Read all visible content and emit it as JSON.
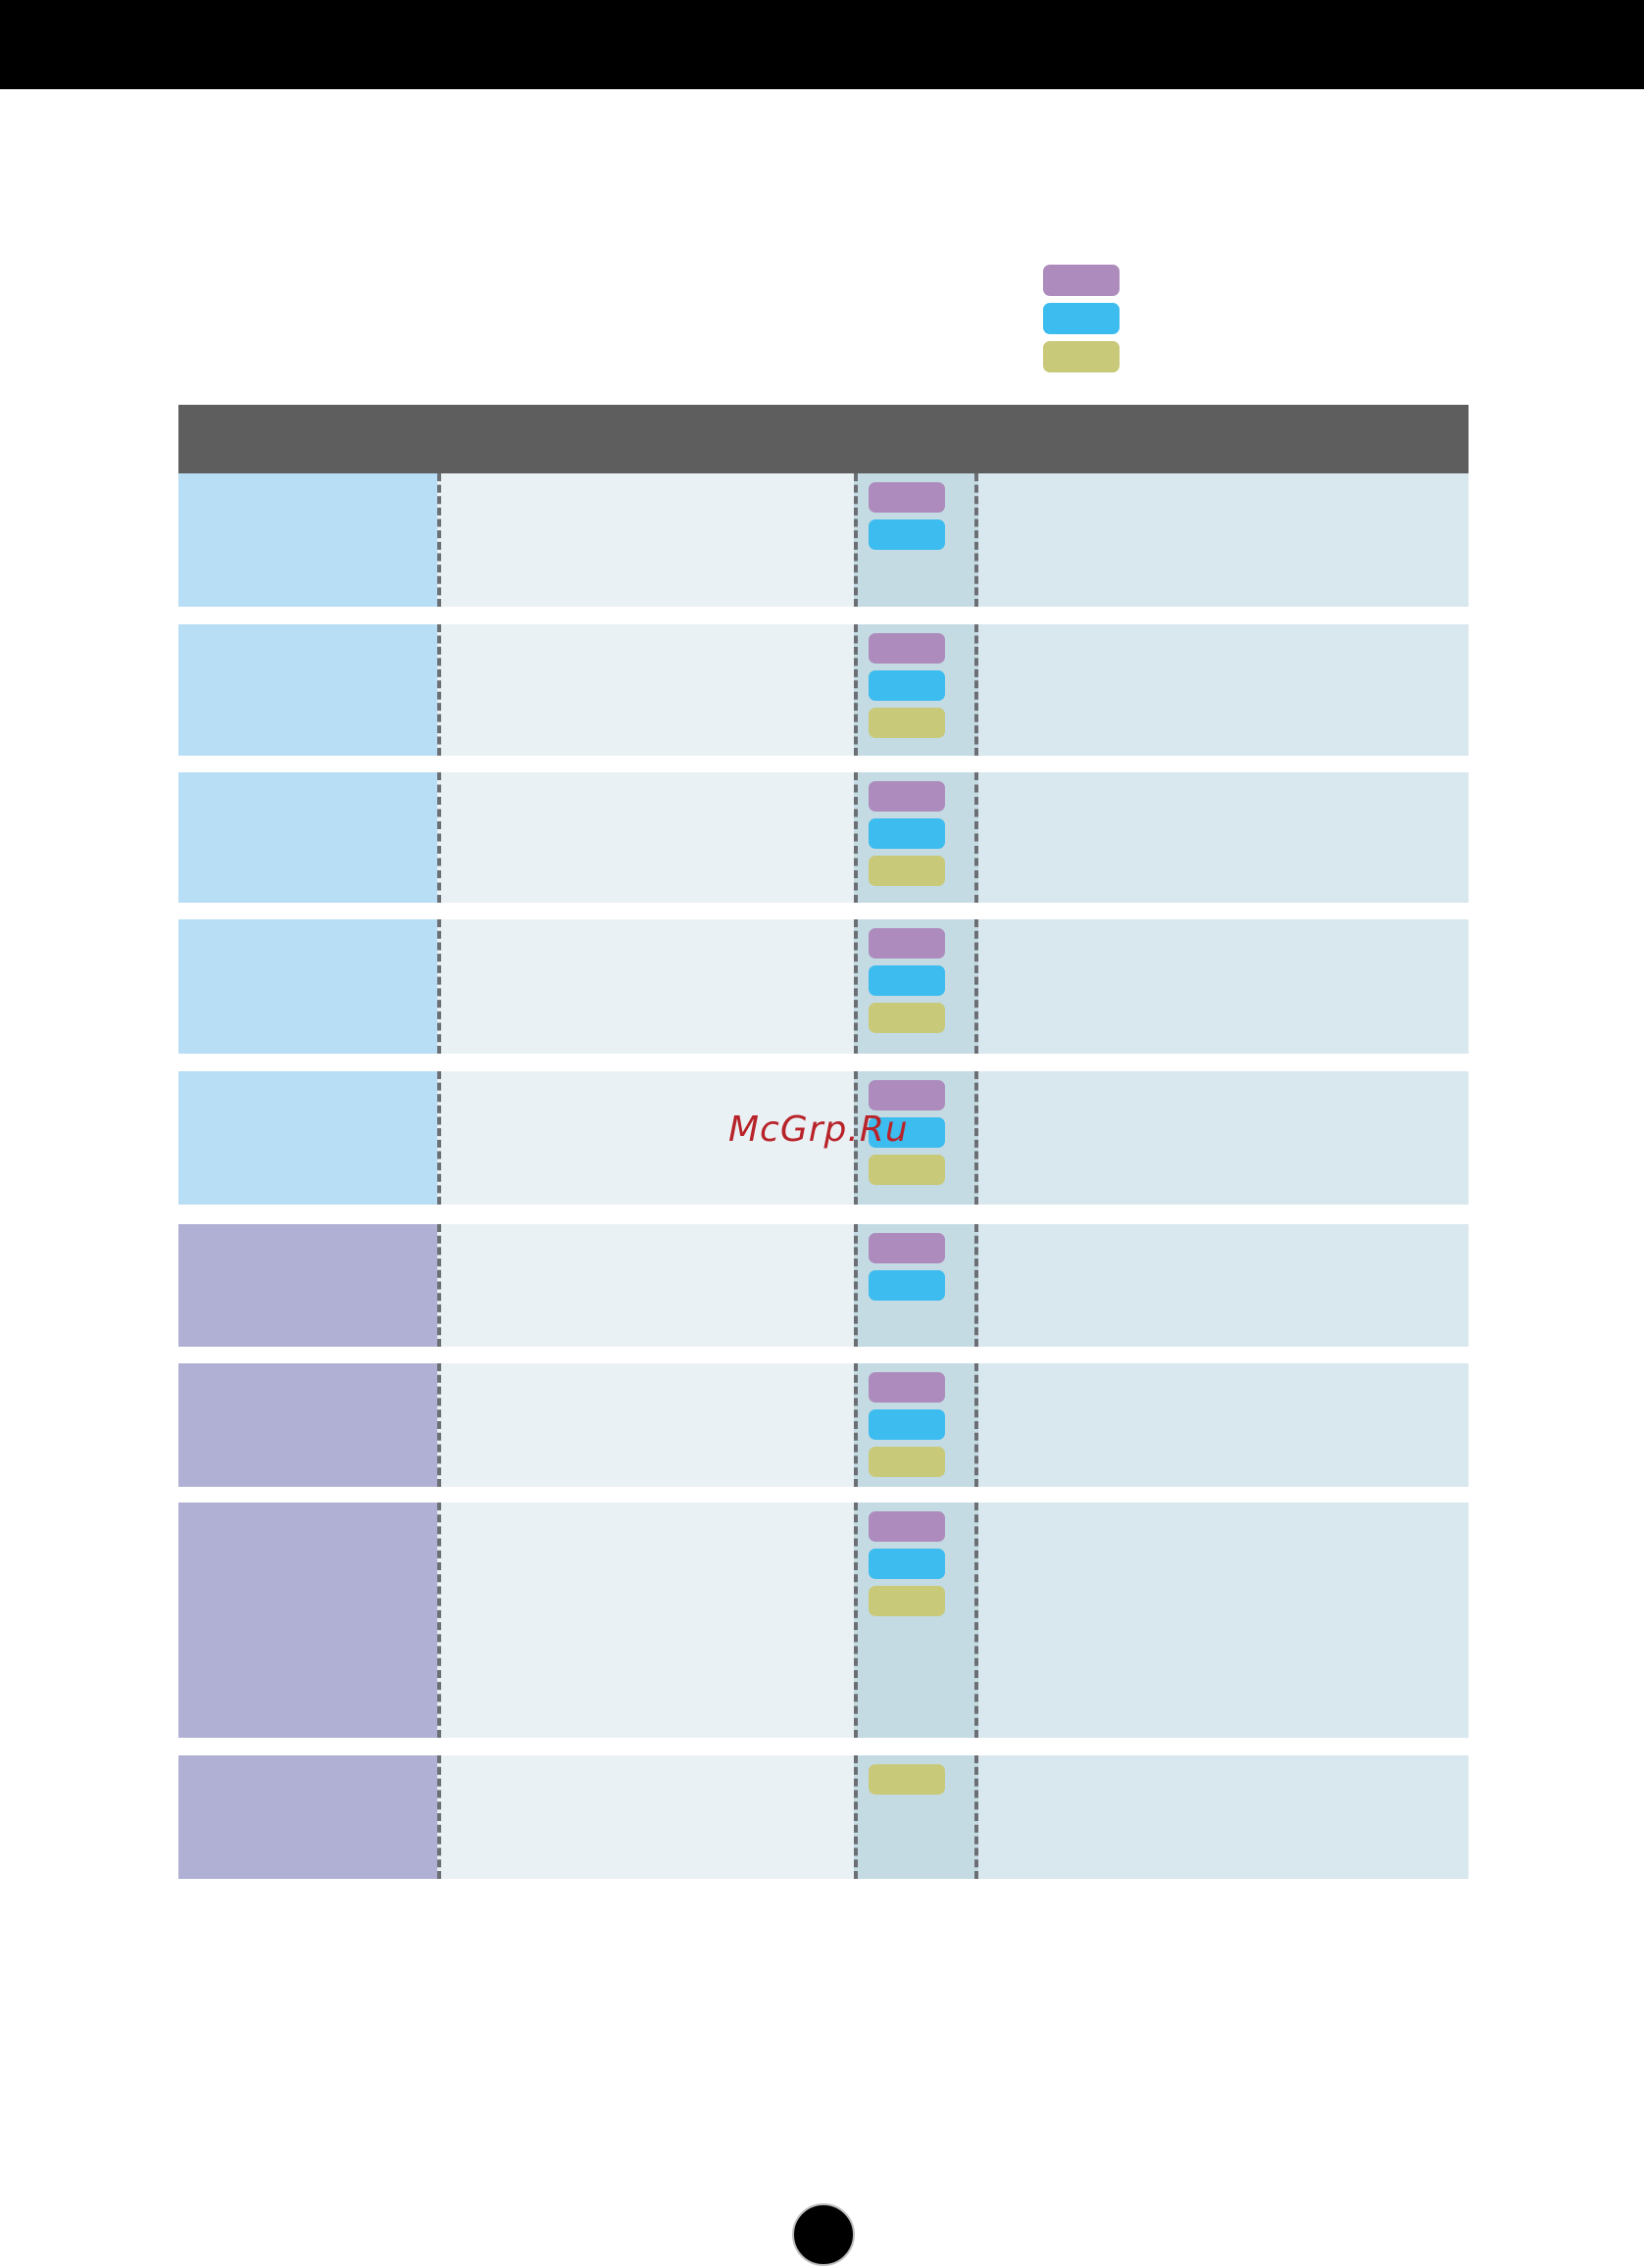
{
  "colors": {
    "header_bar": "#000000",
    "table_header": "#5e5e5e",
    "legend_purple": "#ad8cbd",
    "legend_blue": "#3dbcef",
    "legend_olive": "#c9c97a",
    "group_light_blue": "#b7def5",
    "group_lavender": "#b0afd4",
    "watermark": "#b8232a"
  },
  "legend": [
    "purple",
    "blue",
    "olive"
  ],
  "rows": [
    {
      "group": "lightblue",
      "chips": [
        "purple",
        "blue"
      ]
    },
    {
      "group": "lightblue",
      "chips": [
        "purple",
        "blue",
        "olive"
      ]
    },
    {
      "group": "lightblue",
      "chips": [
        "purple",
        "blue",
        "olive"
      ]
    },
    {
      "group": "lightblue",
      "chips": [
        "purple",
        "blue",
        "olive"
      ]
    },
    {
      "group": "lightblue",
      "chips": [
        "purple",
        "blue",
        "olive"
      ]
    },
    {
      "group": "lavender",
      "chips": [
        "purple",
        "blue"
      ]
    },
    {
      "group": "lavender",
      "chips": [
        "purple",
        "blue",
        "olive"
      ]
    },
    {
      "group": "lavender",
      "chips": [
        "purple",
        "blue",
        "olive"
      ]
    },
    {
      "group": "lavender",
      "chips": [
        "olive"
      ]
    }
  ],
  "watermark": {
    "text": "McGrp.Ru"
  }
}
